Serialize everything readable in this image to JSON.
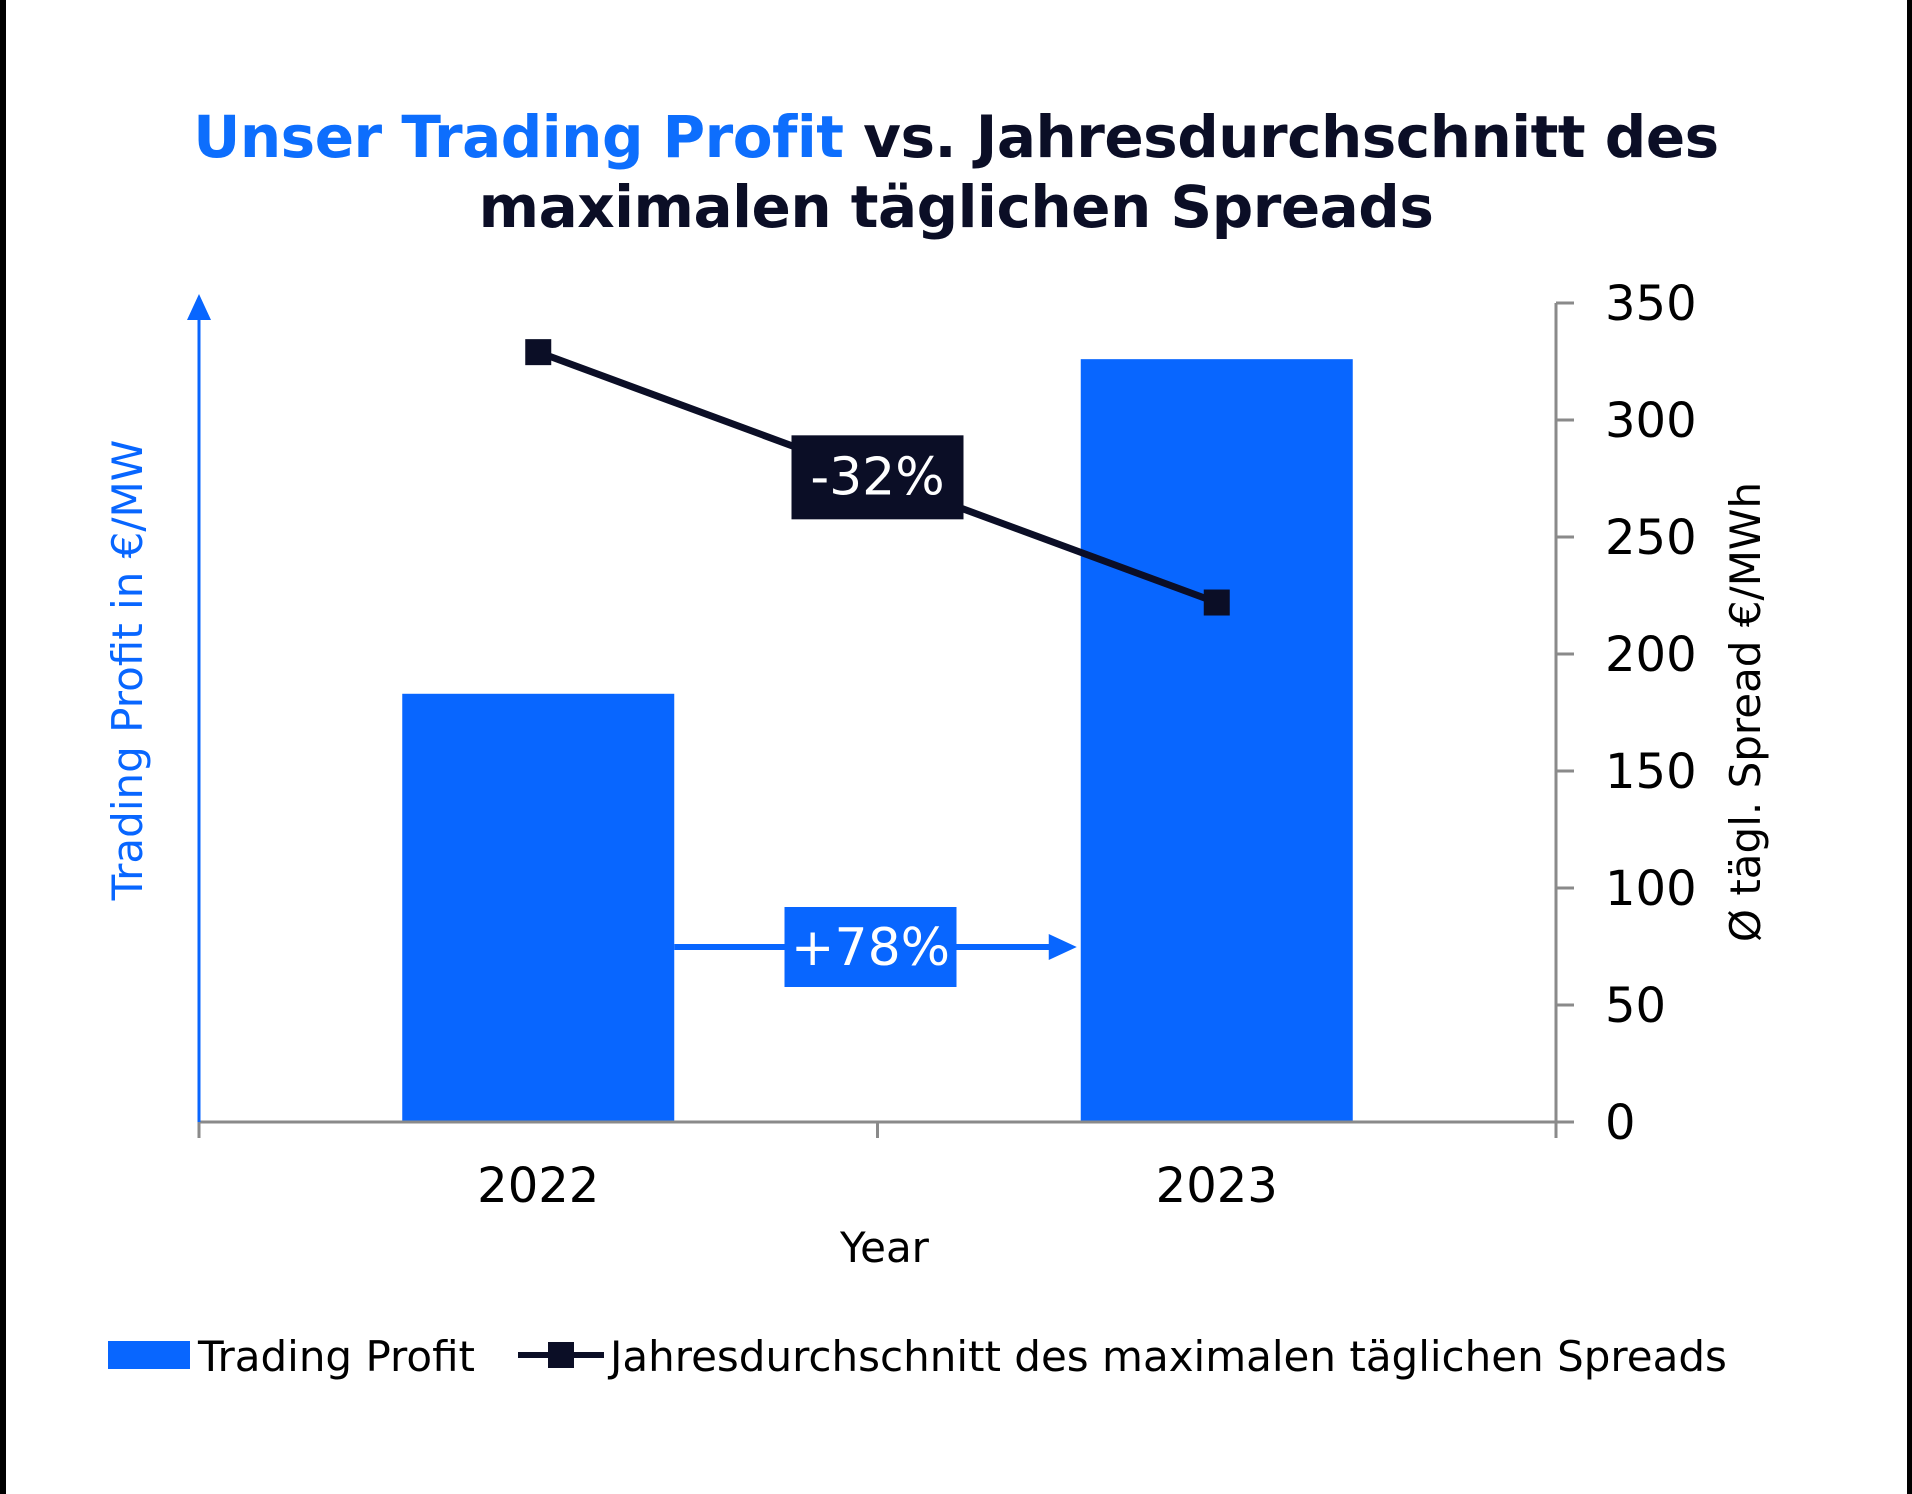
{
  "colors": {
    "bar": "#0866ff",
    "line": "#0b0e26",
    "axis": "#8a8a8a",
    "left_axis": "#0866ff",
    "text": "#0b0e26"
  },
  "chart_data": {
    "type": "bar",
    "combo": true,
    "title_highlight": "Unser Trading Profit",
    "title_rest_line1": " vs. Jahresdurchschnitt des",
    "title_line2": "maximalen täglichen Spreads",
    "categories": [
      "2022",
      "2023"
    ],
    "xlabel": "Year",
    "ylabel_left": "Trading Profit in €/MW",
    "ylabel_right": "Ø tägl. Spread €/MWh",
    "ylim_right": [
      0,
      350
    ],
    "yticks_right": [
      "0",
      "50",
      "100",
      "150",
      "200",
      "250",
      "300",
      "350"
    ],
    "grid": false,
    "legend_position": "bottom",
    "series": [
      {
        "name": "Trading Profit",
        "type": "bar",
        "axis": "left",
        "values": [
          183,
          326
        ]
      },
      {
        "name": "Jahresdurchschnitt des maximalen täglichen Spreads",
        "type": "line",
        "axis": "right",
        "values": [
          329,
          222
        ]
      }
    ],
    "annotations": {
      "profit_change": "+78%",
      "spread_change": "-32%"
    }
  }
}
